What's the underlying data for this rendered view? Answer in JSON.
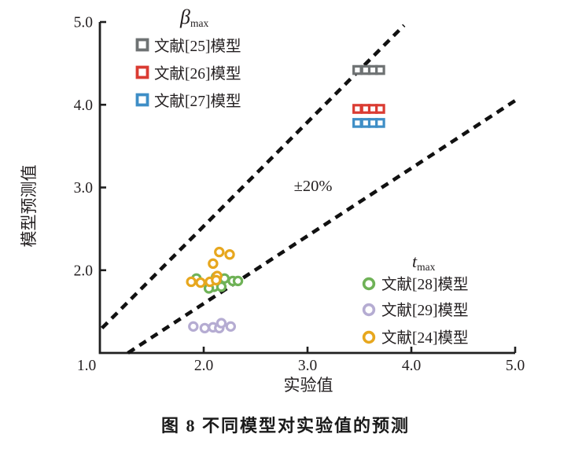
{
  "figure": {
    "caption": "图 8  不同模型对实验值的预测"
  },
  "chart_data": {
    "type": "scatter",
    "xlabel": "实验值",
    "ylabel": "模型预测值",
    "xlim": [
      1.0,
      5.0
    ],
    "ylim": [
      1.0,
      5.0
    ],
    "xticks": [
      1.0,
      2.0,
      3.0,
      4.0,
      5.0
    ],
    "yticks": [
      2.0,
      3.0,
      4.0,
      5.0
    ],
    "tick_label_format": [
      "1.0",
      "2.0",
      "3.0",
      "4.0",
      "5.0"
    ],
    "grid": false,
    "legend_beta_title": {
      "main": "β",
      "sub": "max"
    },
    "legend_t_title": {
      "main": "t",
      "sub": "max"
    },
    "annotation": {
      "text": "±20%",
      "x": 3.03,
      "y": 3.0
    },
    "reference_lines": [
      {
        "name": "upper +20% bound",
        "style": "dashed",
        "color": "#111111",
        "points": [
          [
            1.02,
            1.3
          ],
          [
            3.93,
            4.96
          ]
        ]
      },
      {
        "name": "lower -20% bound",
        "style": "dashed",
        "color": "#111111",
        "points": [
          [
            1.27,
            1.0
          ],
          [
            5.0,
            4.05
          ]
        ]
      }
    ],
    "series": [
      {
        "name": "文献[25]模型",
        "group": "βmax",
        "marker": "square",
        "color": "#6e7273",
        "points": [
          [
            3.48,
            4.42
          ],
          [
            3.56,
            4.42
          ],
          [
            3.63,
            4.42
          ],
          [
            3.7,
            4.42
          ]
        ]
      },
      {
        "name": "文献[26]模型",
        "group": "βmax",
        "marker": "square",
        "color": "#da3b32",
        "points": [
          [
            3.48,
            3.95
          ],
          [
            3.56,
            3.95
          ],
          [
            3.63,
            3.95
          ],
          [
            3.7,
            3.95
          ]
        ]
      },
      {
        "name": "文献[27]模型",
        "group": "βmax",
        "marker": "square",
        "color": "#3e8ec6",
        "points": [
          [
            3.48,
            3.78
          ],
          [
            3.56,
            3.78
          ],
          [
            3.63,
            3.78
          ],
          [
            3.7,
            3.78
          ]
        ]
      },
      {
        "name": "文献[28]模型",
        "group": "tmax",
        "marker": "circle",
        "color": "#6fb257",
        "points": [
          [
            1.93,
            1.9
          ],
          [
            2.12,
            1.92
          ],
          [
            2.2,
            1.9
          ],
          [
            2.28,
            1.87
          ],
          [
            2.33,
            1.87
          ],
          [
            2.1,
            1.8
          ],
          [
            2.17,
            1.8
          ],
          [
            2.05,
            1.78
          ]
        ]
      },
      {
        "name": "文献[29]模型",
        "group": "tmax",
        "marker": "circle",
        "color": "#b5acd2",
        "points": [
          [
            1.9,
            1.32
          ],
          [
            2.01,
            1.3
          ],
          [
            2.09,
            1.31
          ],
          [
            2.15,
            1.3
          ],
          [
            2.17,
            1.36
          ],
          [
            2.26,
            1.32
          ]
        ]
      },
      {
        "name": "文献[24]模型",
        "group": "tmax",
        "marker": "circle",
        "color": "#e7a71e",
        "points": [
          [
            2.15,
            2.22
          ],
          [
            2.25,
            2.19
          ],
          [
            2.09,
            2.08
          ],
          [
            2.13,
            1.93
          ],
          [
            1.88,
            1.86
          ],
          [
            1.97,
            1.85
          ],
          [
            2.06,
            1.86
          ],
          [
            2.12,
            1.88
          ]
        ]
      }
    ],
    "colors": {
      "axis": "#1f1f1f",
      "text": "#231f20"
    }
  }
}
